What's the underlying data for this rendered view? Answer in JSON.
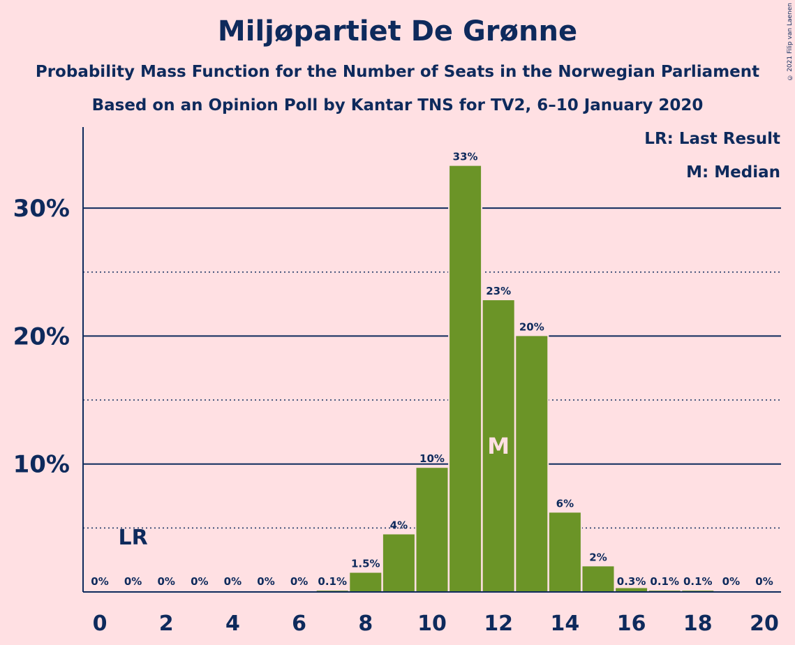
{
  "chart_data": {
    "type": "bar",
    "title": "Miljøpartiet De Grønne",
    "subtitle": "Probability Mass Function for the Number of Seats in the Norwegian Parliament",
    "subtitle2": "Based on an Opinion Poll by Kantar TNS for TV2, 6–10 January 2020",
    "copyright": "© 2021 Filip van Laenen",
    "legend": {
      "lr": "LR: Last Result",
      "m": "M: Median"
    },
    "x": [
      0,
      1,
      2,
      3,
      4,
      5,
      6,
      7,
      8,
      9,
      10,
      11,
      12,
      13,
      14,
      15,
      16,
      17,
      18,
      19,
      20
    ],
    "values": [
      0,
      0,
      0,
      0,
      0,
      0,
      0,
      0.1,
      1.5,
      4.5,
      9.7,
      33.3,
      22.8,
      20.0,
      6.2,
      2.0,
      0.3,
      0.1,
      0.1,
      0,
      0
    ],
    "data_labels": [
      "0%",
      "0%",
      "0%",
      "0%",
      "0%",
      "0%",
      "0%",
      "0.1%",
      "1.5%",
      "4%",
      "10%",
      "33%",
      "23%",
      "20%",
      "6%",
      "2%",
      "0.3%",
      "0.1%",
      "0.1%",
      "0%",
      "0%"
    ],
    "x_ticks": [
      0,
      2,
      4,
      6,
      8,
      10,
      12,
      14,
      16,
      18,
      20
    ],
    "y_ticks": [
      10,
      20,
      30
    ],
    "y_tick_labels": [
      "10%",
      "20%",
      "30%"
    ],
    "ylim": [
      0,
      36
    ],
    "last_result_seat": 1,
    "last_result_label": "LR",
    "median_seat": 12,
    "median_label": "M",
    "bar_color": "#6b9427",
    "axis_color": "#0e2a5c",
    "background": "#ffe0e3",
    "grid": {
      "major": true,
      "minor_dotted": true
    },
    "legend_position": "top-right"
  }
}
